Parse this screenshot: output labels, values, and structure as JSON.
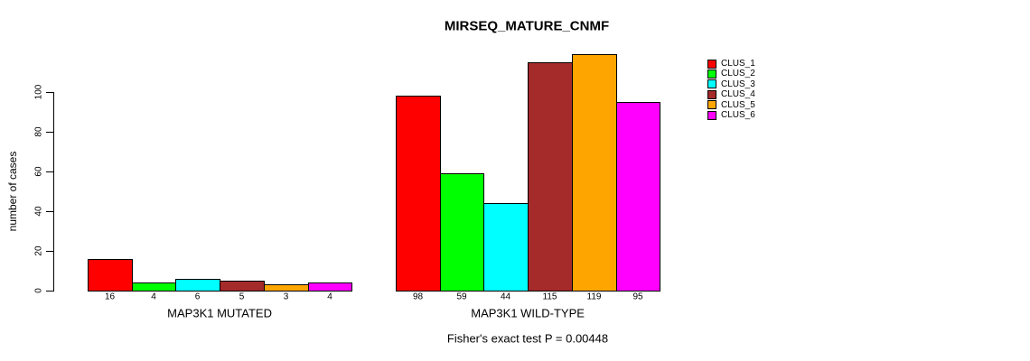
{
  "title": "MIRSEQ_MATURE_CNMF",
  "footer": "Fisher's exact test P = 0.00448",
  "chart_data": {
    "type": "bar",
    "title": "MIRSEQ_MATURE_CNMF",
    "xlabel": "",
    "ylabel": "number of cases",
    "annotation": "Fisher's exact test P = 0.00448",
    "grid": false,
    "bar_value_labels_shown": true,
    "ylim": [
      0,
      120
    ],
    "yticks": [
      0,
      20,
      40,
      60,
      80,
      100
    ],
    "ytick_labels": [
      "0",
      "20",
      "40",
      "60",
      "80",
      "100"
    ],
    "categories": [
      "MAP3K1 MUTATED",
      "MAP3K1 WILD-TYPE"
    ],
    "groups": [
      {
        "label": "MAP3K1 MUTATED",
        "values": [
          16,
          4,
          6,
          5,
          3,
          4
        ]
      },
      {
        "label": "MAP3K1 WILD-TYPE",
        "values": [
          98,
          59,
          44,
          115,
          119,
          95
        ]
      }
    ],
    "series": [
      {
        "name": "CLUS_1",
        "color": "#FF0000",
        "values": [
          16,
          98
        ]
      },
      {
        "name": "CLUS_2",
        "color": "#00FF00",
        "values": [
          4,
          59
        ]
      },
      {
        "name": "CLUS_3",
        "color": "#00FFFF",
        "values": [
          6,
          44
        ]
      },
      {
        "name": "CLUS_4",
        "color": "#A52A2A",
        "values": [
          5,
          115
        ]
      },
      {
        "name": "CLUS_5",
        "color": "#FFA500",
        "values": [
          3,
          119
        ]
      },
      {
        "name": "CLUS_6",
        "color": "#FF00FF",
        "values": [
          4,
          95
        ]
      }
    ],
    "legend": {
      "position": "right",
      "entries": [
        {
          "label": "CLUS_1",
          "color": "#FF0000"
        },
        {
          "label": "CLUS_2",
          "color": "#00FF00"
        },
        {
          "label": "CLUS_3",
          "color": "#00FFFF"
        },
        {
          "label": "CLUS_4",
          "color": "#A52A2A"
        },
        {
          "label": "CLUS_5",
          "color": "#FFA500"
        },
        {
          "label": "CLUS_6",
          "color": "#FF00FF"
        }
      ]
    },
    "colors": {
      "background": "#FFFFFF",
      "axis": "#000000",
      "text": "#000000"
    }
  }
}
